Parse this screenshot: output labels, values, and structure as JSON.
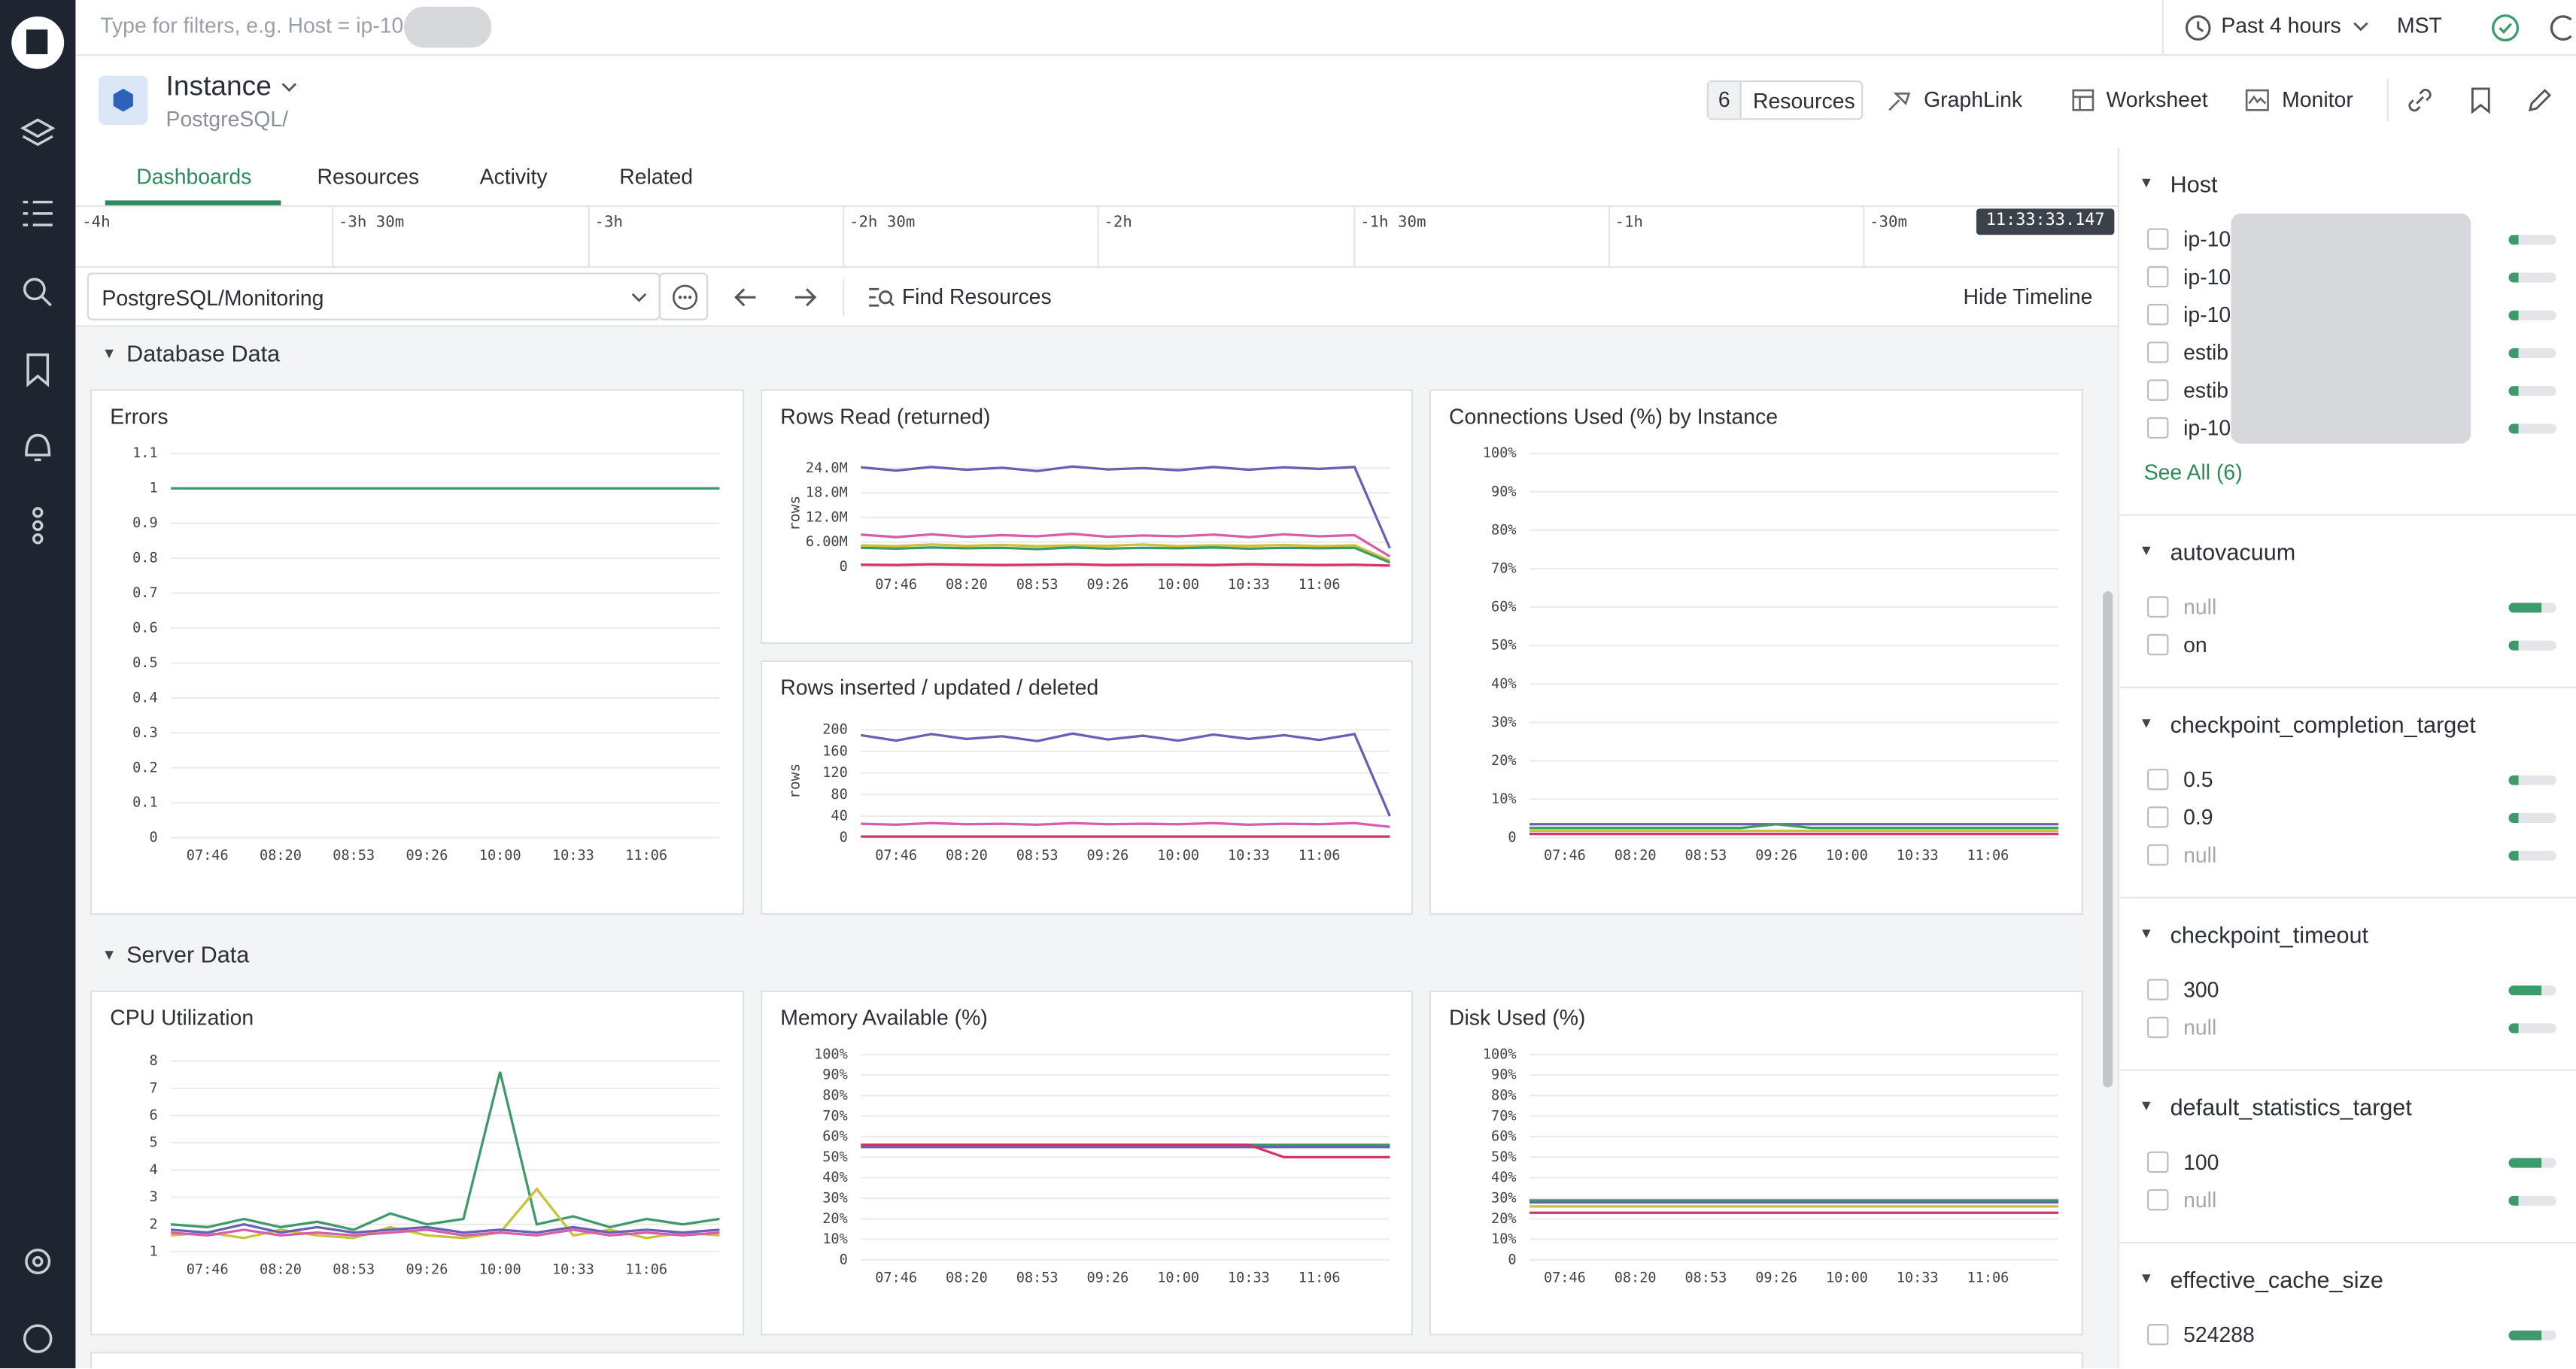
{
  "topbar": {
    "filter_placeholder": "Type for filters, e.g. Host = ip-10-",
    "time_range": "Past 4 hours",
    "timezone": "MST"
  },
  "header": {
    "title": "Instance",
    "subtitle": "PostgreSQL/",
    "resources_count": 6,
    "buttons": [
      "Resources",
      "GraphLink",
      "Worksheet",
      "Monitor"
    ]
  },
  "tabs": [
    "Dashboards",
    "Resources",
    "Activity",
    "Related"
  ],
  "timeline": {
    "labels": [
      "-4h",
      "-3h 30m",
      "-3h",
      "-2h 30m",
      "-2h",
      "-1h 30m",
      "-1h",
      "-30m"
    ],
    "current": "11:33:33.147"
  },
  "toolbar": {
    "dashboard": "PostgreSQL/Monitoring",
    "find": "Find Resources",
    "hide": "Hide Timeline"
  },
  "sections": [
    {
      "title": "Database Data",
      "panels": [
        {
          "type": "line",
          "title": "Errors",
          "categories": [
            null,
            "07:46",
            null,
            "08:20",
            null,
            "08:53",
            null,
            "09:26",
            null,
            "10:00",
            null,
            "10:33",
            null,
            "11:06",
            null,
            null
          ],
          "ylim": [
            0,
            1.1
          ],
          "yticks": [
            0,
            0.1,
            0.2,
            0.3,
            0.4,
            0.5,
            0.6,
            0.7,
            0.8,
            0.9,
            1,
            1.1
          ],
          "series": [
            {
              "color": "#3d9a6b",
              "values": [
                1,
                1,
                1,
                1,
                1,
                1,
                1,
                1,
                1,
                1,
                1,
                1,
                1,
                1,
                1,
                1
              ]
            }
          ]
        },
        {
          "type": "line",
          "title": "Rows Read (returned)",
          "ylabel": "rows",
          "categories": [
            null,
            "07:46",
            null,
            "08:20",
            null,
            "08:53",
            null,
            "09:26",
            null,
            "10:00",
            null,
            "10:33",
            null,
            "11:06",
            null,
            null
          ],
          "ylim": [
            0,
            26000000
          ],
          "yticks": [
            0,
            {
              "value": 6000000,
              "label": "6.00M"
            },
            {
              "value": 12000000,
              "label": "12.0M"
            },
            {
              "value": 18000000,
              "label": "18.0M"
            },
            {
              "value": 24000000,
              "label": "24.0M"
            }
          ],
          "series": [
            {
              "color": "#6b5fb5",
              "values": [
                24200000,
                23400000,
                24300000,
                23600000,
                24100000,
                23300000,
                24400000,
                23700000,
                24000000,
                23500000,
                24300000,
                23600000,
                24200000,
                23800000,
                24300000,
                4500000
              ]
            },
            {
              "color": "#d45fae",
              "values": [
                7800000,
                7200000,
                7900000,
                7300000,
                7700000,
                7400000,
                8000000,
                7300000,
                7600000,
                7400000,
                7800000,
                7200000,
                7900000,
                7400000,
                7700000,
                2500000
              ]
            },
            {
              "color": "#c9c23a",
              "values": [
                5200000,
                5000000,
                5400000,
                5100000,
                5300000,
                5000000,
                5200000,
                5100000,
                5400000,
                5000000,
                5200000,
                5100000,
                5300000,
                5000000,
                5200000,
                1500000
              ]
            },
            {
              "color": "#3d9a6b",
              "values": [
                4600000,
                4400000,
                4700000,
                4500000,
                4600000,
                4300000,
                4700000,
                4400000,
                4600000,
                4500000,
                4700000,
                4400000,
                4600000,
                4500000,
                4600000,
                1000000
              ]
            },
            {
              "color": "#d6336c",
              "values": [
                500000,
                400000,
                600000,
                500000,
                400000,
                500000,
                600000,
                400000,
                500000,
                500000,
                400000,
                600000,
                500000,
                400000,
                500000,
                300000
              ]
            }
          ]
        },
        {
          "type": "line",
          "title": "Rows inserted / updated / deleted",
          "ylabel": "rows",
          "categories": [
            null,
            "07:46",
            null,
            "08:20",
            null,
            "08:53",
            null,
            "09:26",
            null,
            "10:00",
            null,
            "10:33",
            null,
            "11:06",
            null,
            null
          ],
          "ylim": [
            0,
            210
          ],
          "yticks": [
            0,
            40,
            80,
            120,
            160,
            200
          ],
          "series": [
            {
              "color": "#6b5fb5",
              "values": [
                190,
                180,
                192,
                183,
                188,
                179,
                193,
                182,
                189,
                180,
                191,
                183,
                190,
                181,
                192,
                40
              ]
            },
            {
              "color": "#d45fae",
              "values": [
                26,
                24,
                27,
                25,
                26,
                24,
                27,
                25,
                26,
                25,
                27,
                24,
                26,
                25,
                27,
                20
              ]
            },
            {
              "color": "#d6336c",
              "values": [
                2,
                2,
                2,
                2,
                2,
                2,
                2,
                2,
                2,
                2,
                2,
                2,
                2,
                2,
                2,
                2
              ]
            }
          ]
        },
        {
          "type": "line",
          "title": "Connections Used (%) by Instance",
          "categories": [
            null,
            "07:46",
            null,
            "08:20",
            null,
            "08:53",
            null,
            "09:26",
            null,
            "10:00",
            null,
            "10:33",
            null,
            "11:06",
            null,
            null
          ],
          "ylim": [
            0,
            100
          ],
          "yticks": [
            0,
            {
              "value": 10,
              "label": "10%"
            },
            {
              "value": 20,
              "label": "20%"
            },
            {
              "value": 30,
              "label": "30%"
            },
            {
              "value": 40,
              "label": "40%"
            },
            {
              "value": 50,
              "label": "50%"
            },
            {
              "value": 60,
              "label": "60%"
            },
            {
              "value": 70,
              "label": "70%"
            },
            {
              "value": 80,
              "label": "80%"
            },
            {
              "value": 90,
              "label": "90%"
            },
            {
              "value": 100,
              "label": "100%"
            }
          ],
          "series": [
            {
              "color": "#6b5fb5",
              "values": [
                3.5,
                3.5,
                3.5,
                3.5,
                3.5,
                3.5,
                3.5,
                3.5,
                3.5,
                3.5,
                3.5,
                3.5,
                3.5,
                3.5,
                3.5,
                3.5
              ]
            },
            {
              "color": "#3d9a6b",
              "values": [
                2.5,
                2.5,
                2.5,
                2.5,
                2.5,
                2.5,
                2.5,
                3.5,
                2.5,
                2.5,
                2.5,
                2.5,
                2.5,
                2.5,
                2.5,
                2.5
              ]
            },
            {
              "color": "#c9c23a",
              "values": [
                1.8,
                1.8,
                1.8,
                1.8,
                1.8,
                1.8,
                1.8,
                1.8,
                1.8,
                1.8,
                1.8,
                1.8,
                1.8,
                1.8,
                1.8,
                1.8
              ]
            },
            {
              "color": "#d6336c",
              "values": [
                1,
                1,
                1,
                1,
                1,
                1,
                1,
                1,
                1,
                1,
                1,
                1,
                1,
                1,
                1,
                1
              ]
            }
          ]
        }
      ]
    },
    {
      "title": "Server Data",
      "panels": [
        {
          "type": "line",
          "title": "CPU Utilization",
          "categories": [
            null,
            "07:46",
            null,
            "08:20",
            null,
            "08:53",
            null,
            "09:26",
            null,
            "10:00",
            null,
            "10:33",
            null,
            "11:06",
            null,
            null
          ],
          "ylim": [
            1,
            8
          ],
          "yticks": [
            1,
            2,
            3,
            4,
            5,
            6,
            7,
            8
          ],
          "series": [
            {
              "color": "#3d9a6b",
              "values": [
                2,
                1.9,
                2.2,
                1.9,
                2.1,
                1.8,
                2.4,
                2.0,
                2.2,
                7.6,
                2.0,
                2.3,
                1.9,
                2.2,
                2.0,
                2.2
              ]
            },
            {
              "color": "#c9c23a",
              "values": [
                1.6,
                1.7,
                1.5,
                1.8,
                1.6,
                1.5,
                1.9,
                1.6,
                1.5,
                1.7,
                3.3,
                1.6,
                1.8,
                1.5,
                1.7,
                1.6
              ]
            },
            {
              "color": "#d45fae",
              "values": [
                1.7,
                1.6,
                1.8,
                1.6,
                1.7,
                1.6,
                1.7,
                1.8,
                1.6,
                1.7,
                1.6,
                1.8,
                1.6,
                1.7,
                1.6,
                1.7
              ]
            },
            {
              "color": "#6b5fb5",
              "values": [
                1.8,
                1.7,
                2.0,
                1.7,
                1.9,
                1.7,
                1.8,
                1.9,
                1.7,
                1.8,
                1.7,
                1.9,
                1.7,
                1.8,
                1.7,
                1.8
              ]
            }
          ]
        },
        {
          "type": "line",
          "title": "Memory Available (%)",
          "categories": [
            null,
            "07:46",
            null,
            "08:20",
            null,
            "08:53",
            null,
            "09:26",
            null,
            "10:00",
            null,
            "10:33",
            null,
            "11:06",
            null,
            null
          ],
          "ylim": [
            0,
            100
          ],
          "yticks": [
            0,
            {
              "value": 10,
              "label": "10%"
            },
            {
              "value": 20,
              "label": "20%"
            },
            {
              "value": 30,
              "label": "30%"
            },
            {
              "value": 40,
              "label": "40%"
            },
            {
              "value": 50,
              "label": "50%"
            },
            {
              "value": 60,
              "label": "60%"
            },
            {
              "value": 70,
              "label": "70%"
            },
            {
              "value": 80,
              "label": "80%"
            },
            {
              "value": 90,
              "label": "90%"
            },
            {
              "value": 100,
              "label": "100%"
            }
          ],
          "series": [
            {
              "color": "#3d9a6b",
              "values": [
                56,
                56,
                56,
                56,
                56,
                56,
                56,
                56,
                56,
                56,
                56,
                56,
                56,
                56,
                56,
                56
              ]
            },
            {
              "color": "#6b5fb5",
              "values": [
                55,
                55,
                55,
                55,
                55,
                55,
                55,
                55,
                55,
                55,
                55,
                55,
                55,
                55,
                55,
                55
              ]
            },
            {
              "color": "#d6336c",
              "values": [
                56,
                56,
                56,
                56,
                56,
                56,
                56,
                56,
                56,
                56,
                56,
                56,
                50,
                50,
                50,
                50
              ]
            }
          ]
        },
        {
          "type": "line",
          "title": "Disk Used (%)",
          "categories": [
            null,
            "07:46",
            null,
            "08:20",
            null,
            "08:53",
            null,
            "09:26",
            null,
            "10:00",
            null,
            "10:33",
            null,
            "11:06",
            null,
            null
          ],
          "ylim": [
            0,
            100
          ],
          "yticks": [
            0,
            {
              "value": 10,
              "label": "10%"
            },
            {
              "value": 20,
              "label": "20%"
            },
            {
              "value": 30,
              "label": "30%"
            },
            {
              "value": 40,
              "label": "40%"
            },
            {
              "value": 50,
              "label": "50%"
            },
            {
              "value": 60,
              "label": "60%"
            },
            {
              "value": 70,
              "label": "70%"
            },
            {
              "value": 80,
              "label": "80%"
            },
            {
              "value": 90,
              "label": "90%"
            },
            {
              "value": 100,
              "label": "100%"
            }
          ],
          "series": [
            {
              "color": "#3d9a6b",
              "values": [
                29,
                29,
                29,
                29,
                29,
                29,
                29,
                29,
                29,
                29,
                29,
                29,
                29,
                29,
                29,
                29
              ]
            },
            {
              "color": "#6b5fb5",
              "values": [
                28,
                28,
                28,
                28,
                28,
                28,
                28,
                28,
                28,
                28,
                28,
                28,
                28,
                28,
                28,
                28
              ]
            },
            {
              "color": "#c9c23a",
              "values": [
                26,
                26,
                26,
                26,
                26,
                26,
                26,
                26,
                26,
                26,
                26,
                26,
                26,
                26,
                26,
                26
              ]
            },
            {
              "color": "#d6336c",
              "values": [
                23,
                23,
                23,
                23,
                23,
                23,
                23,
                23,
                23,
                23,
                23,
                23,
                23,
                23,
                23,
                23
              ]
            }
          ]
        }
      ]
    }
  ],
  "facets": [
    {
      "name": "Host",
      "items": [
        "ip-10-",
        "ip-10-",
        "ip-10-",
        "estib",
        "estib",
        "ip-10-"
      ],
      "more": "See All (6)"
    },
    {
      "name": "autovacuum",
      "items": [
        "null",
        "on"
      ]
    },
    {
      "name": "checkpoint_completion_target",
      "items": [
        "0.5",
        "0.9",
        "null"
      ]
    },
    {
      "name": "checkpoint_timeout",
      "items": [
        "300",
        "null"
      ]
    },
    {
      "name": "default_statistics_target",
      "items": [
        "100",
        "null"
      ]
    },
    {
      "name": "effective_cache_size",
      "items": [
        "524288"
      ]
    }
  ]
}
